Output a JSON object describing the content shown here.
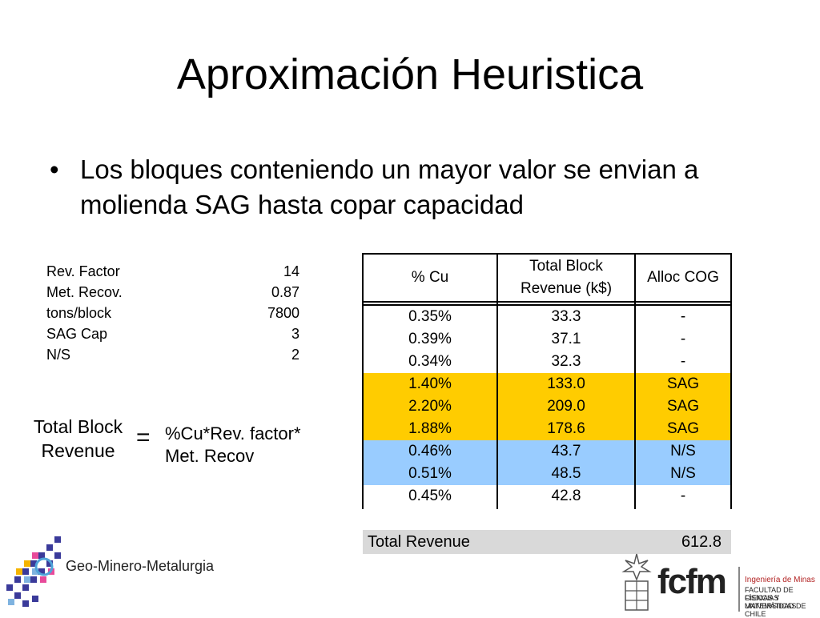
{
  "title": "Aproximación Heuristica",
  "bullet": "Los bloques conteniendo un mayor valor se envian a molienda SAG hasta copar capacidad",
  "params": [
    {
      "label": "Rev. Factor",
      "value": "14"
    },
    {
      "label": "Met. Recov.",
      "value": "0.87"
    },
    {
      "label": "tons/block",
      "value": "7800"
    },
    {
      "label": "SAG Cap",
      "value": "3"
    },
    {
      "label": "N/S",
      "value": "2"
    }
  ],
  "formula": {
    "lhs_line1": "Total Block",
    "lhs_line2": "Revenue",
    "eq": "=",
    "rhs_line1": "%Cu*Rev. factor*",
    "rhs_line2": "Met. Recov"
  },
  "table": {
    "headers": {
      "cu": "% Cu",
      "rev_line1": "Total Block",
      "rev_line2": "Revenue (k$)",
      "alloc": "Alloc COG"
    },
    "rows": [
      {
        "cu": "0.35%",
        "rev": "33.3",
        "alloc": "-"
      },
      {
        "cu": "0.39%",
        "rev": "37.1",
        "alloc": "-"
      },
      {
        "cu": "0.34%",
        "rev": "32.3",
        "alloc": "-"
      },
      {
        "cu": "1.40%",
        "rev": "133.0",
        "alloc": "SAG"
      },
      {
        "cu": "2.20%",
        "rev": "209.0",
        "alloc": "SAG"
      },
      {
        "cu": "1.88%",
        "rev": "178.6",
        "alloc": "SAG"
      },
      {
        "cu": "0.46%",
        "rev": "43.7",
        "alloc": "N/S"
      },
      {
        "cu": "0.51%",
        "rev": "48.5",
        "alloc": "N/S"
      },
      {
        "cu": "0.45%",
        "rev": "42.8",
        "alloc": "-"
      }
    ]
  },
  "total": {
    "label": "Total Revenue",
    "value": "612.8"
  },
  "logos": {
    "left_text": "Geo-Minero-Metalurgia",
    "right_brand": "fcfm",
    "right_line1": "Ingeniería de Minas",
    "right_line2": "FACULTAD DE CIENCIAS",
    "right_line3": "FÍSICAS Y MATEMÁTICAS",
    "right_line4": "UNIVERSIDAD DE CHILE"
  },
  "colors": {
    "sag": "#FFCC00",
    "ns": "#99CCFF",
    "total_bg": "#D9D9D9"
  }
}
